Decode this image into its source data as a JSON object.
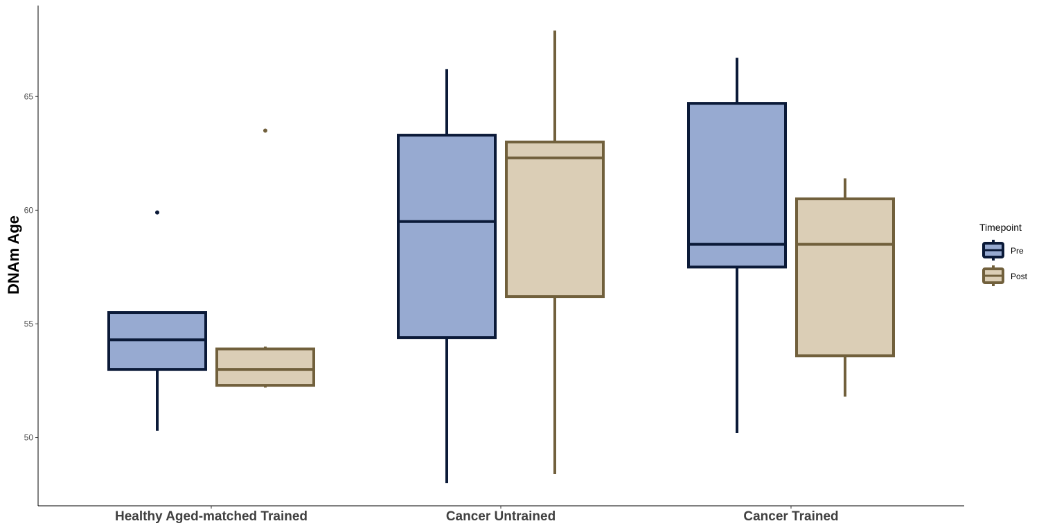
{
  "chart_data": {
    "type": "boxplot",
    "ylabel": "DNAm Age",
    "xlabel": "",
    "ylim": [
      47.0,
      69.0
    ],
    "yticks": [
      50,
      55,
      60,
      65
    ],
    "grid": false,
    "legend": {
      "title": "Timepoint",
      "position": "right"
    },
    "categories": [
      "Healthy Aged-matched Trained",
      "Cancer Untrained",
      "Cancer Trained"
    ],
    "series": [
      {
        "name": "Pre",
        "fill": "#97AAD1",
        "stroke": "#0B1A38",
        "boxes": [
          {
            "whisker_low": 50.3,
            "q1": 53.0,
            "median": 54.3,
            "q3": 55.5,
            "whisker_high": 55.5,
            "outliers": [
              59.9
            ]
          },
          {
            "whisker_low": 48.0,
            "q1": 54.4,
            "median": 59.5,
            "q3": 63.3,
            "whisker_high": 66.2,
            "outliers": []
          },
          {
            "whisker_low": 50.2,
            "q1": 57.5,
            "median": 58.5,
            "q3": 64.7,
            "whisker_high": 66.7,
            "outliers": []
          }
        ]
      },
      {
        "name": "Post",
        "fill": "#DBCEB6",
        "stroke": "#71603C",
        "boxes": [
          {
            "whisker_low": 52.2,
            "q1": 52.3,
            "median": 53.0,
            "q3": 53.9,
            "whisker_high": 54.0,
            "outliers": [
              63.5
            ]
          },
          {
            "whisker_low": 48.4,
            "q1": 56.2,
            "median": 62.3,
            "q3": 63.0,
            "whisker_high": 67.9,
            "outliers": []
          },
          {
            "whisker_low": 51.8,
            "q1": 53.6,
            "median": 58.5,
            "q3": 60.5,
            "whisker_high": 61.4,
            "outliers": []
          }
        ]
      }
    ]
  }
}
